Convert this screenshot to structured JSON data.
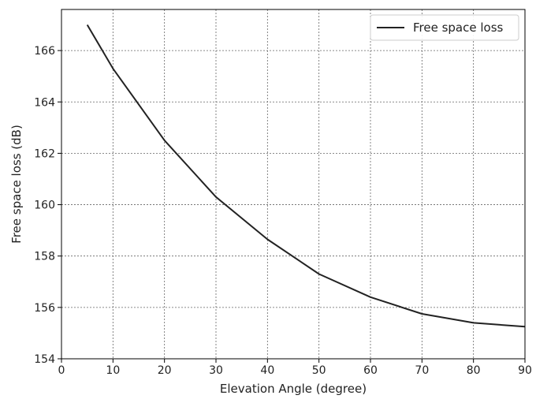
{
  "chart_data": {
    "type": "line",
    "title": "",
    "xlabel": "Elevation Angle (degree)",
    "ylabel": "Free space loss (dB)",
    "xlim": [
      0,
      90
    ],
    "ylim": [
      154,
      167.6
    ],
    "xticks": [
      0,
      10,
      20,
      30,
      40,
      50,
      60,
      70,
      80,
      90
    ],
    "yticks": [
      154,
      156,
      158,
      160,
      162,
      164,
      166
    ],
    "grid": true,
    "legend_position": "top-right",
    "series": [
      {
        "name": "Free space loss",
        "color": "#222222",
        "x": [
          5,
          10,
          20,
          30,
          40,
          50,
          60,
          70,
          80,
          90
        ],
        "y": [
          167.0,
          165.3,
          162.5,
          160.3,
          158.65,
          157.3,
          156.4,
          155.75,
          155.4,
          155.25
        ]
      }
    ]
  }
}
